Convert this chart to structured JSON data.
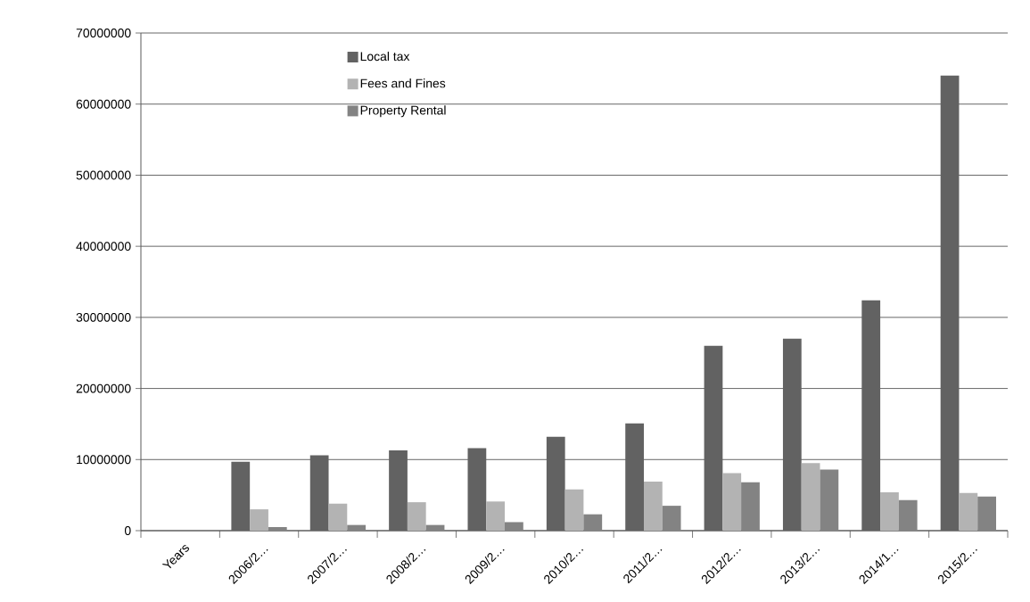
{
  "chart_data": {
    "type": "bar",
    "categories": [
      "Years",
      "2006/2…",
      "2007/2…",
      "2008/2…",
      "2009/2…",
      "2010/2…",
      "2011/2…",
      "2012/2…",
      "2013/2…",
      "2014/1…",
      "2015/2…"
    ],
    "series": [
      {
        "name": "Local tax",
        "color": "#626262",
        "values": [
          null,
          9700000,
          10600000,
          11300000,
          11600000,
          13200000,
          15100000,
          26000000,
          27000000,
          32400000,
          64000000
        ]
      },
      {
        "name": "Fees and Fines",
        "color": "#b3b3b3",
        "values": [
          null,
          3000000,
          3800000,
          4000000,
          4100000,
          5800000,
          6900000,
          8100000,
          9500000,
          5400000,
          5300000
        ]
      },
      {
        "name": "Property Rental",
        "color": "#838383",
        "values": [
          null,
          500000,
          800000,
          800000,
          1200000,
          2300000,
          3500000,
          6800000,
          8600000,
          4300000,
          4800000
        ]
      }
    ],
    "ylim": [
      0,
      70000000
    ],
    "yticks": [
      0,
      10000000,
      20000000,
      30000000,
      40000000,
      50000000,
      60000000,
      70000000
    ],
    "grid": "y",
    "legend": "top"
  }
}
